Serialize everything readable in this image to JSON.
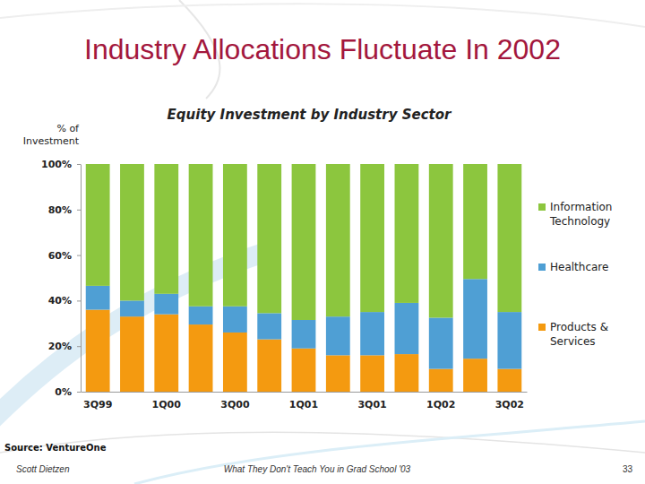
{
  "chart_data": {
    "type": "bar",
    "title": "Equity Investment by Industry Sector",
    "y_label": "% of Investment",
    "categories": [
      "3Q99",
      null,
      "1Q00",
      null,
      "3Q00",
      null,
      "1Q01",
      null,
      "3Q01",
      null,
      "1Q02",
      null,
      "3Q02"
    ],
    "series": [
      {
        "name": "Products & Services",
        "color": "#f49a10",
        "values": [
          36,
          33,
          34,
          29.5,
          26,
          23,
          19,
          16,
          16,
          16.5,
          10,
          14.5,
          10
        ]
      },
      {
        "name": "Healthcare",
        "color": "#4f9fd4",
        "values": [
          10.5,
          7,
          9,
          8,
          11.5,
          11.5,
          12.5,
          17,
          19,
          22.5,
          22.5,
          35,
          25
        ]
      },
      {
        "name": "Information Technology",
        "color": "#8cc63e",
        "values": [
          53.5,
          60,
          57,
          62.5,
          62.5,
          65.5,
          68.5,
          67,
          65,
          61,
          67.5,
          50.5,
          65
        ]
      }
    ],
    "ylim": [
      0,
      100
    ],
    "yticks": [
      {
        "value": 0,
        "label": "0%"
      },
      {
        "value": 20,
        "label": "20%"
      },
      {
        "value": 40,
        "label": "40%"
      },
      {
        "value": 60,
        "label": "60%"
      },
      {
        "value": 80,
        "label": "80%"
      },
      {
        "value": 100,
        "label": "100%"
      }
    ],
    "stacked": true,
    "legend": "right",
    "grid": false
  },
  "slide": {
    "title": "Industry Allocations Fluctuate In 2002",
    "source": "Source: VentureOne",
    "footer_left": "Scott Dietzen",
    "footer_center": "What They Don't Teach You in Grad School '03",
    "page_number": "33"
  }
}
